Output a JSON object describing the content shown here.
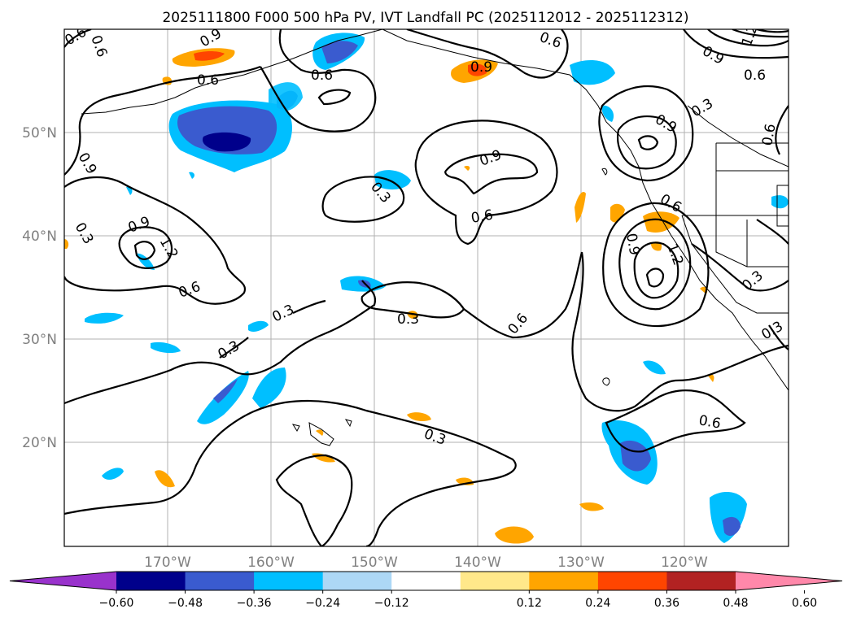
{
  "map": {
    "title": "2025111800 F000 500 hPa PV, IVT Landfall PC (2025112012 - 2025112312)",
    "lat_labels": [
      "50°N",
      "40°N",
      "30°N",
      "20°N"
    ],
    "lon_labels": [
      "170°W",
      "160°W",
      "150°W",
      "140°W",
      "130°W",
      "120°W"
    ],
    "contour_labels": [
      "0.6",
      "0.6",
      "0.9",
      "0.6",
      "0.6",
      "0.9",
      "0.6",
      "1.2",
      "0.6",
      "0.9",
      "0.3",
      "0.9",
      "0.6",
      "0.3",
      "0.9",
      "0.6",
      "0.9",
      "0.9",
      "1.2",
      "0.9",
      "1.2",
      "0.6",
      "0.3",
      "0.6",
      "0.3",
      "0.3",
      "0.3",
      "0.6",
      "0.3",
      "0.3",
      "0.3",
      "0.6"
    ]
  },
  "colorbar": {
    "labels": [
      "−0.60",
      "−0.48",
      "−0.36",
      "−0.24",
      "−0.12",
      "0.12",
      "0.24",
      "0.36",
      "0.48",
      "0.60"
    ],
    "colors": [
      "#9932cc",
      "#00008b",
      "#3a5bcf",
      "#00bfff",
      "#add8f6",
      "#ffffff",
      "#ffe88a",
      "#ffa500",
      "#ff4500",
      "#b22222",
      "#ff88aa"
    ]
  }
}
